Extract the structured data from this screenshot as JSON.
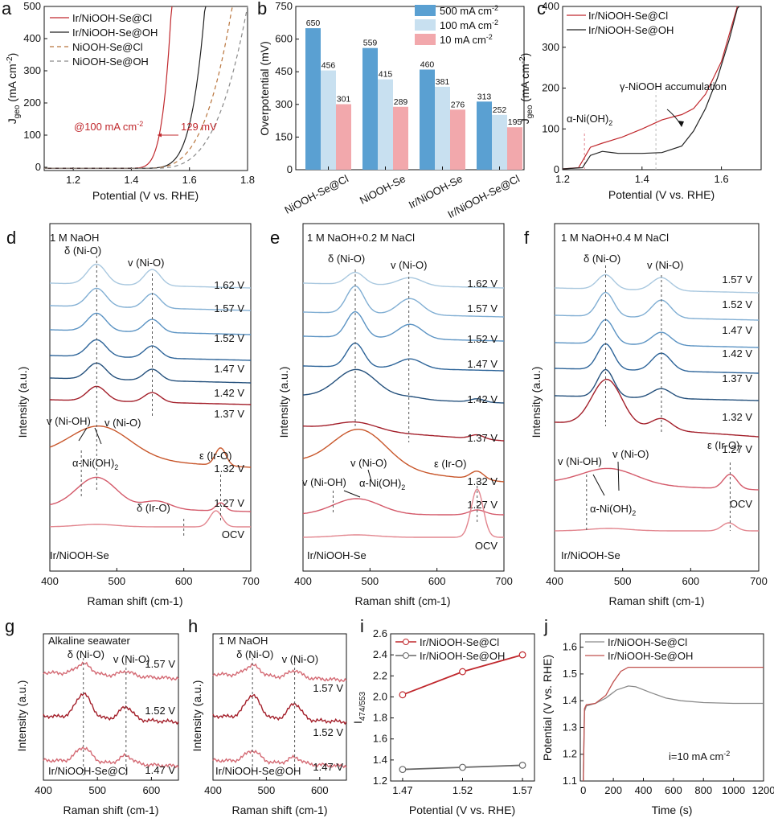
{
  "chart_data": [
    {
      "panel": "a",
      "type": "line",
      "xlabel": "Potential (V vs. RHE)",
      "ylabel": "Jgeo (mA cm-2)",
      "ylabel_main": "J",
      "ylabel_sub": "geo",
      "ylabel_rest": " (mA cm",
      "ylabel_sup": "-2",
      "ylabel_close": ")",
      "xlim": [
        1.1,
        1.8
      ],
      "ylim": [
        -10,
        500
      ],
      "xticks": [
        "1.2",
        "1.4",
        "1.6",
        "1.8"
      ],
      "yticks": [
        "0",
        "100",
        "200",
        "300",
        "400",
        "500"
      ],
      "series": [
        {
          "name": "Ir/NiOOH-Se@Cl",
          "color": "#c0282d",
          "dash": "",
          "onset": 1.37,
          "x100": 1.496,
          "k": 5.5,
          "floor": -3
        },
        {
          "name": "Ir/NiOOH-Se@OH",
          "color": "#222222",
          "dash": "",
          "onset": 1.4,
          "x100": 1.59,
          "k": 5.5,
          "floor": -3
        },
        {
          "name": "NiOOH-Se@Cl",
          "color": "#b8743c",
          "dash": "5 4",
          "onset": 1.44,
          "x100": 1.63,
          "k": 3.3,
          "floor": -3
        },
        {
          "name": "NiOOH-Se@OH",
          "color": "#8a8a8a",
          "dash": "5 4",
          "onset": 1.46,
          "x100": 1.67,
          "k": 3.3,
          "floor": -3
        }
      ],
      "annotation": {
        "label_main": "@100 mA cm",
        "label_sup": "-2",
        "delta": "129 mV",
        "y": 100
      }
    },
    {
      "panel": "b",
      "type": "bar",
      "ylabel": "Overpotential (mV)",
      "ylim": [
        0,
        750
      ],
      "yticks": [
        "0",
        "150",
        "300",
        "450",
        "600",
        "750"
      ],
      "categories": [
        "NiOOH-Se@Cl",
        "NiOOH-Se",
        "Ir/NiOOH-Se",
        "Ir/NiOOH-Se@Cl"
      ],
      "series": [
        {
          "name": "500 mA cm-2",
          "name_main": "500 mA cm",
          "name_sup": "-2",
          "color": "#5aa0d2",
          "values": [
            650,
            559,
            460,
            313
          ]
        },
        {
          "name": "100 mA cm-2",
          "name_main": "100 mA cm",
          "name_sup": "-2",
          "color": "#c8e0f0",
          "values": [
            456,
            415,
            381,
            252
          ]
        },
        {
          "name": "10 mA cm-2",
          "name_main": "10 mA cm",
          "name_sup": "-2",
          "color": "#f2a8ac",
          "values": [
            301,
            289,
            276,
            195
          ]
        }
      ]
    },
    {
      "panel": "c",
      "type": "line",
      "xlabel": "Potential (V vs. RHE)",
      "ylabel": "Jgeo (mA cm-2)",
      "xlim": [
        1.2,
        1.7
      ],
      "ylim": [
        0,
        400
      ],
      "xticks": [
        "1.2",
        "1.4",
        "1.6"
      ],
      "yticks": [
        "0",
        "100",
        "200",
        "300",
        "400"
      ],
      "series": [
        {
          "name": "Ir/NiOOH-Se@Cl",
          "color": "#c0282d",
          "points": [
            [
              1.2,
              2
            ],
            [
              1.24,
              5
            ],
            [
              1.255,
              30
            ],
            [
              1.27,
              55
            ],
            [
              1.3,
              65
            ],
            [
              1.35,
              80
            ],
            [
              1.4,
              100
            ],
            [
              1.45,
              122
            ],
            [
              1.48,
              130
            ],
            [
              1.5,
              135
            ],
            [
              1.53,
              150
            ],
            [
              1.56,
              185
            ],
            [
              1.6,
              265
            ],
            [
              1.625,
              350
            ],
            [
              1.64,
              410
            ]
          ]
        },
        {
          "name": "Ir/NiOOH-Se@OH",
          "color": "#222222",
          "points": [
            [
              1.2,
              2
            ],
            [
              1.25,
              5
            ],
            [
              1.27,
              35
            ],
            [
              1.3,
              45
            ],
            [
              1.34,
              40
            ],
            [
              1.4,
              40
            ],
            [
              1.45,
              42
            ],
            [
              1.5,
              58
            ],
            [
              1.53,
              95
            ],
            [
              1.56,
              150
            ],
            [
              1.59,
              225
            ],
            [
              1.62,
              320
            ],
            [
              1.64,
              395
            ],
            [
              1.645,
              410
            ]
          ]
        }
      ],
      "annotations": [
        "α-Ni(OH)2",
        "γ-NiOOH accumulation"
      ],
      "ann_alpha_main": "α-Ni(OH)",
      "ann_alpha_sub": "2",
      "ann_gamma": "γ-NiOOH accumulation"
    },
    {
      "panel": "d",
      "type": "line",
      "title": "1 M NaOH",
      "xlabel": "Raman shift (cm-1)",
      "ylabel": "Intensity (a.u.)",
      "xlim": [
        400,
        700
      ],
      "xticks": [
        "400",
        "500",
        "600",
        "700"
      ],
      "sample": "Ir/NiOOH-Se",
      "peak_labels": [
        "δ (Ni-O)",
        "v (Ni-O)",
        "v (Ni-OH)",
        "α-Ni(OH)2",
        "ε (Ir-O)",
        "δ (Ir-O)"
      ],
      "series": [
        {
          "name": "1.62 V",
          "color": "#a9c8df"
        },
        {
          "name": "1.57 V",
          "color": "#80aed3"
        },
        {
          "name": "1.52 V",
          "color": "#5b93c3"
        },
        {
          "name": "1.47 V",
          "color": "#2d6499"
        },
        {
          "name": "1.42 V",
          "color": "#24507c"
        },
        {
          "name": "1.37 V",
          "color": "#a31f2a"
        },
        {
          "name": "1.32 V",
          "color": "#c8562a"
        },
        {
          "name": "1.27 V",
          "color": "#d45a6a"
        },
        {
          "name": "OCV",
          "color": "#e2858e"
        }
      ]
    },
    {
      "panel": "e",
      "type": "line",
      "title": "1 M NaOH+0.2 M NaCl",
      "xlabel": "Raman shift (cm-1)",
      "ylabel": "Intensity (a.u.)",
      "xlim": [
        400,
        700
      ],
      "xticks": [
        "400",
        "500",
        "600",
        "700"
      ],
      "sample": "Ir/NiOOH-Se",
      "peak_labels": [
        "δ (Ni-O)",
        "v (Ni-O)",
        "v (Ni-OH)",
        "α-Ni(OH)2",
        "ε (Ir-O)"
      ],
      "series": [
        {
          "name": "1.62 V",
          "color": "#a9c8df"
        },
        {
          "name": "1.57 V",
          "color": "#80aed3"
        },
        {
          "name": "1.52 V",
          "color": "#5b93c3"
        },
        {
          "name": "1.47 V",
          "color": "#2d6499"
        },
        {
          "name": "1.42 V",
          "color": "#24507c"
        },
        {
          "name": "1.37 V",
          "color": "#a31f2a"
        },
        {
          "name": "1.32 V",
          "color": "#c8562a"
        },
        {
          "name": "1.27 V",
          "color": "#d45a6a"
        },
        {
          "name": "OCV",
          "color": "#e2858e"
        }
      ]
    },
    {
      "panel": "f",
      "type": "line",
      "title": "1 M NaOH+0.4 M NaCl",
      "xlabel": "Raman shift (cm-1)",
      "ylabel": "Intensity (a.u.)",
      "xlim": [
        400,
        700
      ],
      "xticks": [
        "400",
        "500",
        "600",
        "700"
      ],
      "sample": "Ir/NiOOH-Se",
      "peak_labels": [
        "δ (Ni-O)",
        "v (Ni-O)",
        "v (Ni-OH)",
        "α-Ni(OH)2",
        "ε (Ir-O)"
      ],
      "series": [
        {
          "name": "1.57 V",
          "color": "#a9c8df"
        },
        {
          "name": "1.52 V",
          "color": "#80aed3"
        },
        {
          "name": "1.47 V",
          "color": "#5b93c3"
        },
        {
          "name": "1.42 V",
          "color": "#2d6499"
        },
        {
          "name": "1.37 V",
          "color": "#24507c"
        },
        {
          "name": "1.32 V",
          "color": "#a31f2a"
        },
        {
          "name": "1.27 V",
          "color": "#d45a6a"
        },
        {
          "name": "OCV",
          "color": "#e2858e"
        }
      ]
    },
    {
      "panel": "g",
      "type": "line",
      "title": "Alkaline seawater",
      "xlabel": "Raman shift (cm-1)",
      "ylabel": "Intensity (a.u.)",
      "xlim": [
        400,
        650
      ],
      "xticks": [
        "400",
        "500",
        "600"
      ],
      "sample": "Ir/NiOOH-Se@Cl",
      "peak_labels": [
        "δ (Ni-O)",
        "v (Ni-O)"
      ],
      "series": [
        {
          "name": "1.57 V",
          "color": "#d46a74",
          "p1": 13,
          "p2": 6
        },
        {
          "name": "1.52 V",
          "color": "#a31f2a",
          "p1": 30,
          "p2": 16
        },
        {
          "name": "1.47 V",
          "color": "#d46a74",
          "p1": 18,
          "p2": 10
        }
      ]
    },
    {
      "panel": "h",
      "type": "line",
      "title": "1 M NaOH",
      "xlabel": "Raman shift (cm-1)",
      "ylabel": "Intensity (a.u.)",
      "xlim": [
        400,
        650
      ],
      "xticks": [
        "400",
        "500",
        "600"
      ],
      "sample": "Ir/NiOOH-Se@OH",
      "peak_labels": [
        "δ (Ni-O)",
        "v (Ni-O)"
      ],
      "series": [
        {
          "name": "1.57 V",
          "color": "#d46a74",
          "p1": 13,
          "p2": 9
        },
        {
          "name": "1.52 V",
          "color": "#a31f2a",
          "p1": 28,
          "p2": 20
        },
        {
          "name": "1.47 V",
          "color": "#d46a74",
          "p1": 14,
          "p2": 8
        }
      ]
    },
    {
      "panel": "i",
      "type": "line",
      "xlabel": "Potential (V vs. RHE)",
      "ylabel": "I474/553",
      "ylabel_main": "I",
      "ylabel_sub": "474/553",
      "xlim": [
        1.46,
        1.58
      ],
      "ylim": [
        1.2,
        2.6
      ],
      "xticks": [
        "1.47",
        "1.52",
        "1.57"
      ],
      "yticks": [
        "1.2",
        "1.4",
        "1.6",
        "1.8",
        "2.0",
        "2.2",
        "2.4",
        "2.6"
      ],
      "x": [
        1.47,
        1.52,
        1.57
      ],
      "series": [
        {
          "name": "Ir/NiOOH-Se@Cl",
          "color": "#c0282d",
          "values": [
            2.02,
            2.24,
            2.4
          ]
        },
        {
          "name": "Ir/NiOOH-Se@OH",
          "color": "#666666",
          "values": [
            1.31,
            1.33,
            1.35
          ]
        }
      ]
    },
    {
      "panel": "j",
      "type": "line",
      "xlabel": "Time (s)",
      "ylabel": "Potential (V vs. RHE)",
      "xlim": [
        -20,
        1200
      ],
      "ylim": [
        1.1,
        1.65
      ],
      "xticks": [
        "0",
        "200",
        "400",
        "600",
        "800",
        "1000",
        "1200"
      ],
      "yticks": [
        "1.1",
        "1.2",
        "1.3",
        "1.4",
        "1.5",
        "1.6"
      ],
      "annotation": "i=10 mA cm-2",
      "ann_main": "i=10 mA cm",
      "ann_sup": "-2",
      "series": [
        {
          "name": "Ir/NiOOH-Se@Cl",
          "color": "#8a8a8a",
          "points": [
            [
              0,
              1.1
            ],
            [
              8,
              1.36
            ],
            [
              20,
              1.38
            ],
            [
              80,
              1.39
            ],
            [
              150,
              1.41
            ],
            [
              220,
              1.44
            ],
            [
              300,
              1.455
            ],
            [
              350,
              1.452
            ],
            [
              450,
              1.43
            ],
            [
              550,
              1.41
            ],
            [
              650,
              1.4
            ],
            [
              800,
              1.393
            ],
            [
              1000,
              1.39
            ],
            [
              1200,
              1.39
            ]
          ]
        },
        {
          "name": "Ir/NiOOH-Se@OH",
          "color": "#c0504d",
          "points": [
            [
              0,
              1.1
            ],
            [
              8,
              1.37
            ],
            [
              20,
              1.385
            ],
            [
              80,
              1.39
            ],
            [
              150,
              1.42
            ],
            [
              200,
              1.47
            ],
            [
              250,
              1.51
            ],
            [
              300,
              1.525
            ],
            [
              400,
              1.525
            ],
            [
              700,
              1.525
            ],
            [
              1200,
              1.525
            ]
          ]
        }
      ]
    }
  ]
}
